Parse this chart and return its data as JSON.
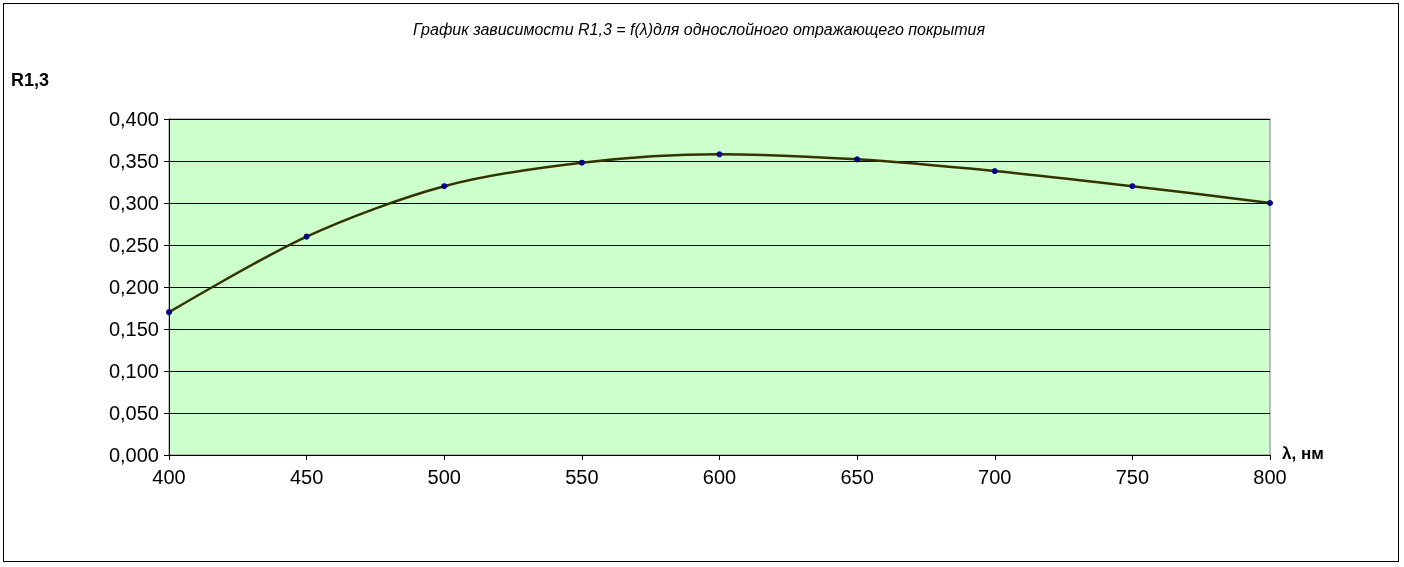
{
  "chart_data": {
    "type": "line",
    "title": "График зависимости R1,3 = f(λ)для однослойного отражающего покрытия",
    "xlabel": "λ, нм",
    "ylabel": "R1,3",
    "x": [
      400,
      450,
      500,
      550,
      600,
      650,
      700,
      750,
      800
    ],
    "series": [
      {
        "color": "#333300",
        "values": [
          0.17,
          0.26,
          0.32,
          0.348,
          0.358,
          0.352,
          0.338,
          0.32,
          0.3
        ]
      }
    ],
    "xlim": [
      400,
      800
    ],
    "xticks": [
      400,
      450,
      500,
      550,
      600,
      650,
      700,
      750,
      800
    ],
    "ylim": [
      0,
      0.4
    ],
    "yticks": [
      {
        "value": 0,
        "label": "0,000"
      },
      {
        "value": 0.05,
        "label": "0,050"
      },
      {
        "value": 0.1,
        "label": "0,100"
      },
      {
        "value": 0.15,
        "label": "0,150"
      },
      {
        "value": 0.2,
        "label": "0,200"
      },
      {
        "value": 0.25,
        "label": "0,250"
      },
      {
        "value": 0.3,
        "label": "0,300"
      },
      {
        "value": 0.35,
        "label": "0,350"
      },
      {
        "value": 0.4,
        "label": "0,400"
      }
    ],
    "grid": "y",
    "marker": "circle",
    "line_style": "solid"
  }
}
